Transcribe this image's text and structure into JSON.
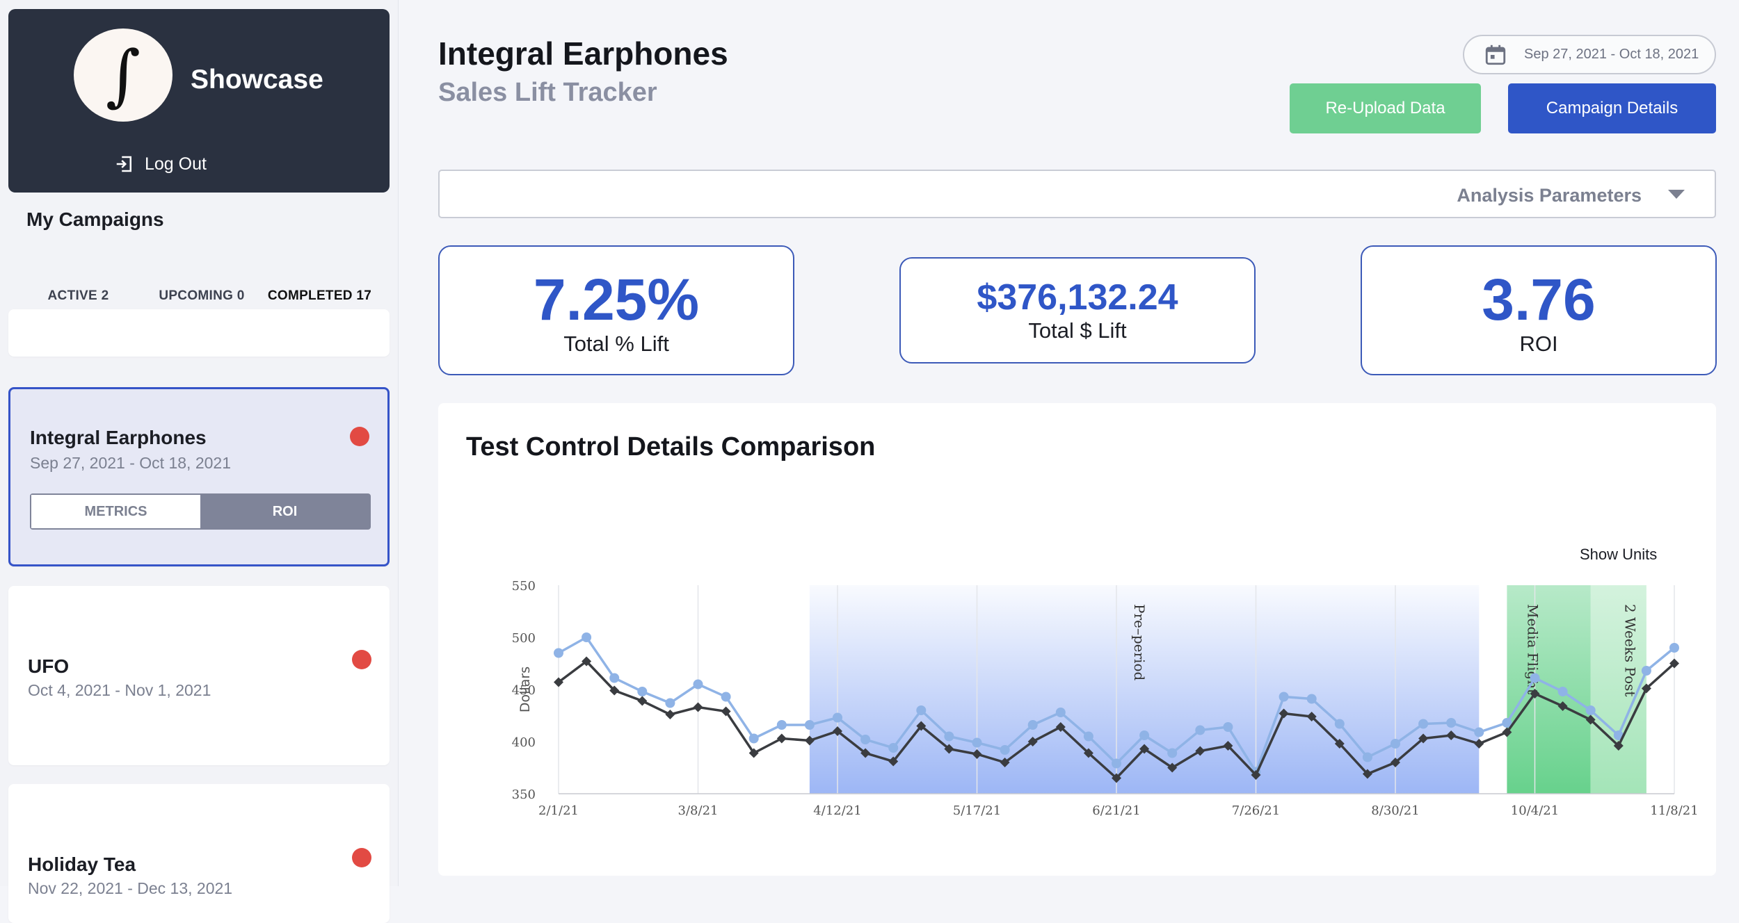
{
  "brand": {
    "logo_glyph": "∫",
    "name": "Showcase",
    "logout_label": "Log Out"
  },
  "sidebar": {
    "heading": "My Campaigns",
    "tabs": [
      {
        "label": "ACTIVE 2"
      },
      {
        "label": "UPCOMING 0"
      },
      {
        "label": "COMPLETED 17",
        "active": true
      }
    ],
    "campaigns": [
      {
        "title": "Integral Earphones",
        "dates": "Sep 27, 2021 - Oct 18, 2021",
        "selected": true,
        "metrics_label": "METRICS",
        "roi_label": "ROI",
        "status_color": "#e24a43"
      },
      {
        "title": "UFO",
        "dates": "Oct 4, 2021 - Nov 1, 2021",
        "status_color": "#e24a43"
      },
      {
        "title": "Holiday Tea",
        "dates": "Nov 22, 2021 - Dec 13, 2021",
        "status_color": "#e24a43"
      }
    ]
  },
  "header": {
    "title": "Integral Earphones",
    "subtitle": "Sales Lift Tracker",
    "date_range": "Sep 27, 2021 - Oct 18, 2021",
    "reupload_label": "Re-Upload Data",
    "details_label": "Campaign Details"
  },
  "params": {
    "label": "Analysis Parameters"
  },
  "kpis": [
    {
      "value": "7.25%",
      "label": "Total % Lift"
    },
    {
      "value": "$376,132.24",
      "label": "Total $ Lift"
    },
    {
      "value": "3.76",
      "label": "ROI"
    }
  ],
  "chart_section": {
    "title": "Test Control Details Comparison",
    "show_units_label": "Show Units"
  },
  "colors": {
    "accent": "#2f56c7",
    "test_line": "#8fb3e6",
    "control_line": "#3a3c40",
    "pre_period": "#7c9ef2",
    "media_flight": "#5fcf86",
    "post_period": "#9fe3b4",
    "status_red": "#e24a43"
  },
  "chart_data": {
    "type": "line",
    "title": "",
    "xlabel": "",
    "ylabel": "Dollars",
    "ylim": [
      350,
      550
    ],
    "yticks": [
      350,
      400,
      450,
      500,
      550
    ],
    "x_start": "2021-02-01",
    "x_interval_days": 7,
    "xtick_labels": [
      "2/1/21",
      "3/8/21",
      "4/12/21",
      "5/17/21",
      "6/21/21",
      "7/26/21",
      "8/30/21",
      "10/4/21",
      "11/8/21"
    ],
    "grid": true,
    "series": [
      {
        "values": [
          485,
          500,
          461,
          448,
          437,
          455,
          443,
          403,
          416,
          416,
          423,
          402,
          394,
          430,
          405,
          399,
          392,
          416,
          428,
          405,
          379,
          406,
          389,
          411,
          414,
          371,
          443,
          441,
          417,
          385,
          398,
          417,
          418,
          409,
          418,
          461,
          448,
          430,
          406,
          468,
          490
        ]
      },
      {
        "values": [
          457,
          477,
          449,
          439,
          426,
          433,
          429,
          389,
          403,
          401,
          410,
          389,
          381,
          415,
          393,
          388,
          380,
          400,
          414,
          389,
          365,
          393,
          375,
          391,
          396,
          368,
          427,
          424,
          398,
          369,
          380,
          403,
          406,
          398,
          409,
          446,
          434,
          421,
          396,
          451,
          475
        ]
      }
    ],
    "regions": [
      {
        "label": "Pre–period",
        "start": "2021-04-05",
        "end": "2021-09-20"
      },
      {
        "label": "Media Flight",
        "start": "2021-09-27",
        "end": "2021-10-18"
      },
      {
        "label": "2 Weeks Post",
        "start": "2021-10-18",
        "end": "2021-11-01"
      }
    ]
  }
}
